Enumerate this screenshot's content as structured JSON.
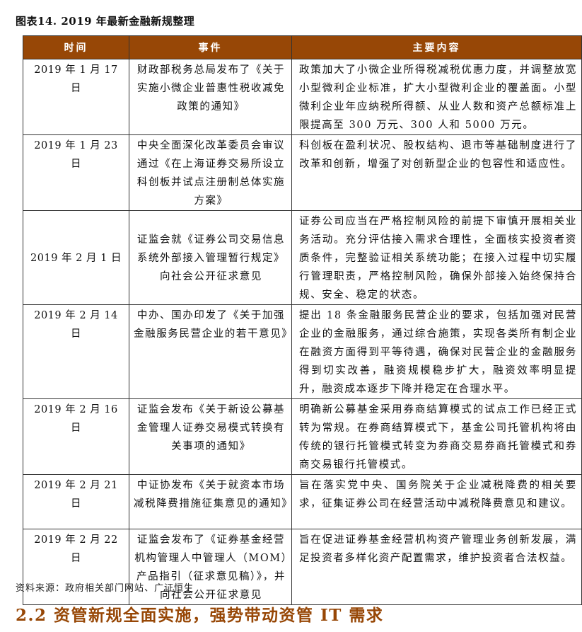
{
  "caption": "图表14.  2019 年最新金融新规整理",
  "table": {
    "headers": [
      "时间",
      "事件",
      "主要内容"
    ],
    "header_color": "#974706",
    "rows": [
      {
        "date": "2019 年 1 月 17 日",
        "event": "财政部税务总局发布了《关于实施小微企业普惠性税收减免政策的通知》",
        "content": "政策加大了小微企业所得税减税优惠力度，并调整放宽小型微利企业标准，扩大小型微利企业的覆盖面。小型微利企业年应纳税所得额、从业人数和资产总额标准上限提高至 300 万元、300 人和 5000 万元。"
      },
      {
        "date": "2019 年 1 月 23 日",
        "event": "中央全面深化改革委员会审议通过《在上海证券交易所设立科创板并试点注册制总体实施方案》",
        "content": "科创板在盈利状况、股权结构、退市等基础制度进行了改革和创新，增强了对创新型企业的包容性和适应性。"
      },
      {
        "date": "2019 年 2 月 1 日",
        "event": "证监会就《证券公司交易信息系统外部接入管理暂行规定》向社会公开征求意见",
        "content": "证券公司应当在严格控制风险的前提下审慎开展相关业务活动。充分评估接入需求合理性，全面核实投资者资质条件，完整验证相关系统功能；在接入过程中切实履行管理职责，严格控制风险，确保外部接入始终保持合规、安全、稳定的状态。"
      },
      {
        "date": "2019 年 2 月 14 日",
        "event": "中办、国办印发了《关于加强金融服务民营企业的若干意见》",
        "content": "提出 18 条金融服务民营企业的要求，包括加强对民营企业的金融服务，通过综合施策，实现各类所有制企业在融资方面得到平等待遇，确保对民营企业的金融服务得到切实改善，融资规模稳步扩大，融资效率明显提升，融资成本逐步下降并稳定在合理水平。"
      },
      {
        "date": "2019 年 2 月 16 日",
        "event": "证监会发布《关于新设公募基金管理人证券交易模式转换有关事项的通知》",
        "content": "明确新公募基金采用券商结算模式的试点工作已经正式转为常规。在券商结算模式下，基金公司托管机构将由传统的银行托管模式转变为券商交易券商托管模式和券商交易银行托管模式。"
      },
      {
        "date": "2019 年 2 月 21 日",
        "event": "中证协发布《关于就资本市场减税降费措施征集意见的通知》",
        "content": "旨在落实党中央、国务院关于企业减税降费的相关要求，征集证券公司在经营活动中减税降费意见和建议。"
      },
      {
        "date": "2019 年 2 月 22 日",
        "event": "证监会发布了《证券基金经营机构管理人中管理人（MOM）产品指引（征求意见稿）》，并向社会公开征求意见",
        "content": "旨在促进证券基金经营机构资产管理业务创新发展，满足投资者多样化资产配置需求，维护投资者合法权益。"
      }
    ]
  },
  "source": "资料来源：政府相关部门网站、广证恒生",
  "section_heading": "2.2 资管新规全面实施，强势带动资管 IT 需求"
}
